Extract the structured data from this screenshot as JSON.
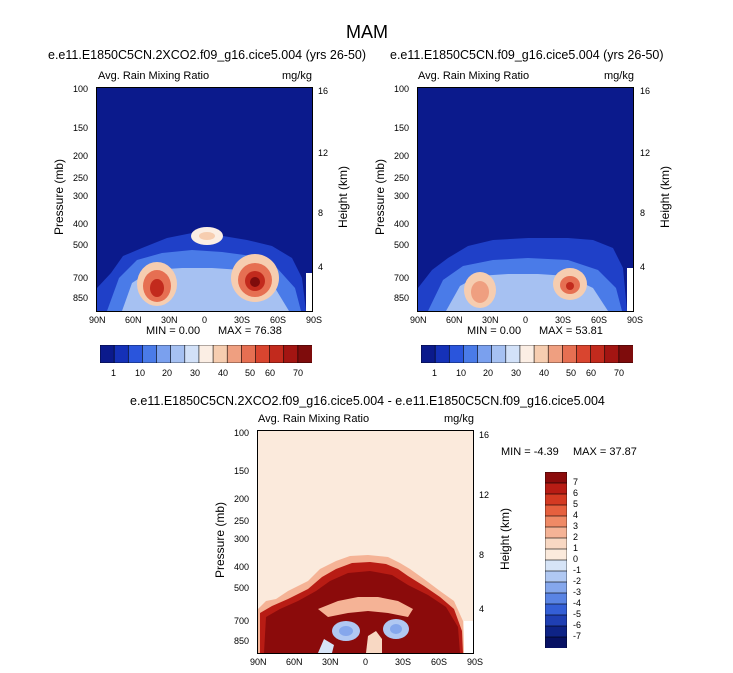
{
  "figure": {
    "title": "MAM"
  },
  "panels": [
    {
      "case": "e.e11.E1850C5CN.2XCO2.f09_g16.cice5.004 (yrs 26-50)",
      "left_label": "Avg. Rain Mixing Ratio",
      "right_label": "mg/kg",
      "ylabel": "Pressure (mb)",
      "ylabel_right": "Height (km)",
      "min_text": "MIN =   0.00",
      "max_text": "MAX =  76.38"
    },
    {
      "case": "e.e11.E1850C5CN.f09_g16.cice5.004 (yrs 26-50)",
      "left_label": "Avg. Rain Mixing Ratio",
      "right_label": "mg/kg",
      "ylabel": "Pressure (mb)",
      "ylabel_right": "Height (km)",
      "min_text": "MIN =   0.00",
      "max_text": "MAX =  53.81"
    },
    {
      "case": "e.e11.E1850C5CN.2XCO2.f09_g16.cice5.004 - e.e11.E1850C5CN.f09_g16.cice5.004",
      "left_label": "Avg. Rain Mixing Ratio",
      "right_label": "mg/kg",
      "ylabel": "Pressure (mb)",
      "ylabel_right": "Height (km)",
      "min_text": "MIN =  -4.39",
      "max_text": "MAX =  37.87"
    }
  ],
  "axes": {
    "lat_ticks": [
      "90N",
      "60N",
      "30N",
      "0",
      "30S",
      "60S",
      "90S"
    ],
    "pressure_ticks": [
      "100",
      "150",
      "200",
      "250",
      "300",
      "400",
      "500",
      "700",
      "850"
    ],
    "height_ticks": [
      "16",
      "12",
      "8",
      "4"
    ]
  },
  "colorbar_top": {
    "labels": [
      "1",
      "10",
      "20",
      "30",
      "40",
      "50",
      "60",
      "70"
    ],
    "colors": [
      "#0b1a8c",
      "#1531b8",
      "#2a55dc",
      "#4a7be8",
      "#7aa0ee",
      "#a6c1f2",
      "#d2e1f8",
      "#fbeee4",
      "#f6cdb0",
      "#ef9f80",
      "#e66f52",
      "#d9452f",
      "#c22a1d",
      "#a31512",
      "#7e0c0c"
    ]
  },
  "colorbar_diff": {
    "labels": [
      "7",
      "6",
      "5",
      "4",
      "3",
      "2",
      "1",
      "0",
      "-1",
      "-2",
      "-3",
      "-4",
      "-5",
      "-6",
      "-7"
    ],
    "colors": [
      "#8b0b0b",
      "#b81c14",
      "#d43a22",
      "#e6603e",
      "#ef8a66",
      "#f5b396",
      "#f8d8c3",
      "#fbeadc",
      "#d6e4f7",
      "#b0c8f2",
      "#85a7ec",
      "#5a84e4",
      "#345fd6",
      "#1f3fb3",
      "#0e2386",
      "#071163"
    ]
  },
  "chart_data": [
    {
      "type": "heatmap",
      "title": "e.e11.E1850C5CN.2XCO2.f09_g16.cice5.004 (yrs 26-50)",
      "xlabel": "",
      "ylabel": "Pressure (mb)",
      "x_ticks": [
        "90N",
        "60N",
        "30N",
        "0",
        "30S",
        "60S",
        "90S"
      ],
      "y_ticks": [
        100,
        150,
        200,
        250,
        300,
        400,
        500,
        700,
        850
      ],
      "units": "mg/kg",
      "min": 0.0,
      "max": 76.38,
      "features": [
        {
          "lat": 25,
          "pressure": 700,
          "value": 60
        },
        {
          "lat": 0,
          "pressure": 410,
          "value": 35
        },
        {
          "lat": -42,
          "pressure": 720,
          "value": 76
        }
      ]
    },
    {
      "type": "heatmap",
      "title": "e.e11.E1850C5CN.f09_g16.cice5.004 (yrs 26-50)",
      "xlabel": "",
      "ylabel": "Pressure (mb)",
      "x_ticks": [
        "90N",
        "60N",
        "30N",
        "0",
        "30S",
        "60S",
        "90S"
      ],
      "y_ticks": [
        100,
        150,
        200,
        250,
        300,
        400,
        500,
        700,
        850
      ],
      "units": "mg/kg",
      "min": 0.0,
      "max": 53.81,
      "features": [
        {
          "lat": 25,
          "pressure": 760,
          "value": 45
        },
        {
          "lat": -42,
          "pressure": 720,
          "value": 53
        }
      ]
    },
    {
      "type": "heatmap",
      "title": "e.e11.E1850C5CN.2XCO2.f09_g16.cice5.004 - e.e11.E1850C5CN.f09_g16.cice5.004",
      "xlabel": "",
      "ylabel": "Pressure (mb)",
      "x_ticks": [
        "90N",
        "60N",
        "30N",
        "0",
        "30S",
        "60S",
        "90S"
      ],
      "y_ticks": [
        100,
        150,
        200,
        250,
        300,
        400,
        500,
        700,
        850
      ],
      "units": "mg/kg",
      "min": -4.39,
      "max": 37.87
    }
  ]
}
